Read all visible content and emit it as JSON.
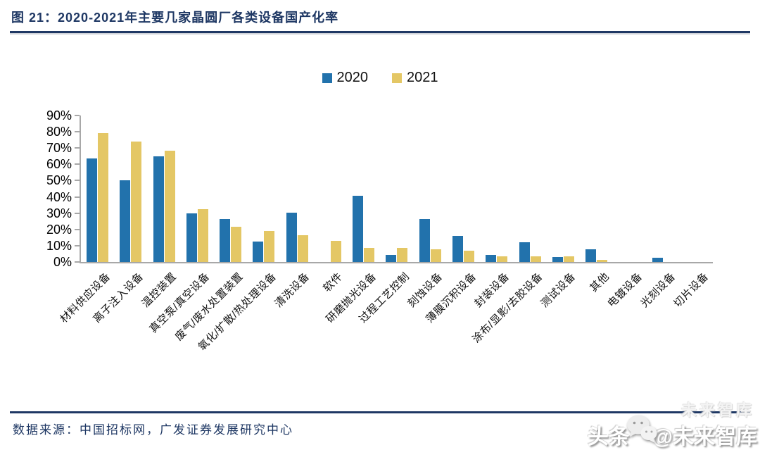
{
  "header": {
    "title": "图 21：2020-2021年主要几家晶圆厂各类设备国产化率"
  },
  "chart_data": {
    "type": "bar",
    "title": "2020-2021年主要几家晶圆厂各类设备国产化率",
    "categories": [
      "材料供应设备",
      "离子注入设备",
      "温控装置",
      "真空泵/真空设备",
      "废气/废水处置装置",
      "氧化/扩散/热处理设备",
      "清洗设备",
      "软件",
      "研磨抛光设备",
      "过程工艺控制",
      "刻蚀设备",
      "薄膜沉积设备",
      "封装设备",
      "涂布/显影/去胶设备",
      "测试设备",
      "其他",
      "电镀设备",
      "光刻设备",
      "切片设备"
    ],
    "series": [
      {
        "name": "2020",
        "color": "#2272AC",
        "values": [
          63.5,
          50,
          65,
          30,
          26.5,
          12.5,
          30.5,
          0,
          40.5,
          4.5,
          26.5,
          16,
          4.5,
          12,
          3,
          8,
          0,
          2.5,
          0
        ]
      },
      {
        "name": "2021",
        "color": "#E4C765",
        "values": [
          79,
          74,
          68.5,
          32.5,
          21.5,
          19,
          16.5,
          13,
          8.5,
          8.5,
          8,
          7,
          3.5,
          3.5,
          3.5,
          1.5,
          0,
          0,
          0
        ]
      }
    ],
    "xlabel": "",
    "ylabel": "",
    "ylim": [
      0,
      90
    ],
    "yticks": [
      "90%",
      "80%",
      "70%",
      "60%",
      "50%",
      "40%",
      "30%",
      "20%",
      "10%",
      "0%"
    ],
    "grid": false,
    "legend_position": "top-center",
    "value_unit": "%"
  },
  "footer": {
    "source": "数据来源：中国招标网，广发证券发展研究中心"
  },
  "watermark": {
    "text_left": "头条",
    "text_right": "@未来智库",
    "ghost": "未来智库",
    "icon": "wechat-bubbles-icon"
  },
  "colors": {
    "accent_navy": "#1F3864",
    "bar_2020": "#2272AC",
    "bar_2021": "#E4C765",
    "axis_gray": "#A8A8A8"
  }
}
